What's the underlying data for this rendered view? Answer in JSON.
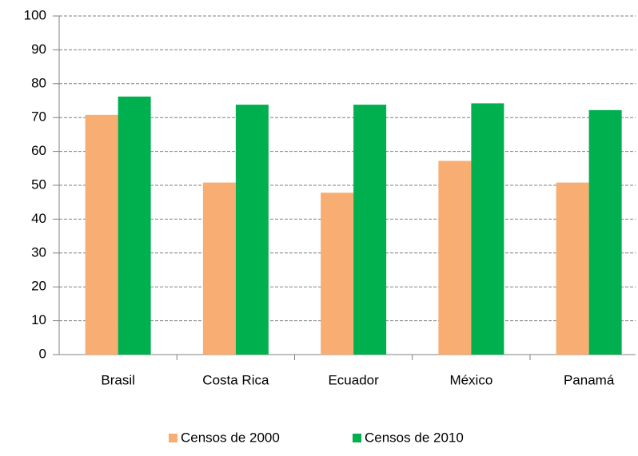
{
  "chart_data": {
    "type": "bar",
    "categories": [
      "Brasil",
      "Costa Rica",
      "Ecuador",
      "México",
      "Panamá"
    ],
    "series": [
      {
        "name": "Censos de 2000",
        "color": "#f8ae73",
        "values": [
          70.8,
          50.8,
          47.8,
          57.2,
          50.8
        ]
      },
      {
        "name": "Censos de 2010",
        "color": "#00b04f",
        "values": [
          76.2,
          73.8,
          73.8,
          74.2,
          72.2
        ]
      }
    ],
    "ylim": [
      0,
      100
    ],
    "yticks": [
      0,
      10,
      20,
      30,
      40,
      50,
      60,
      70,
      80,
      90,
      100
    ],
    "grid": true,
    "legend": "bottom"
  }
}
